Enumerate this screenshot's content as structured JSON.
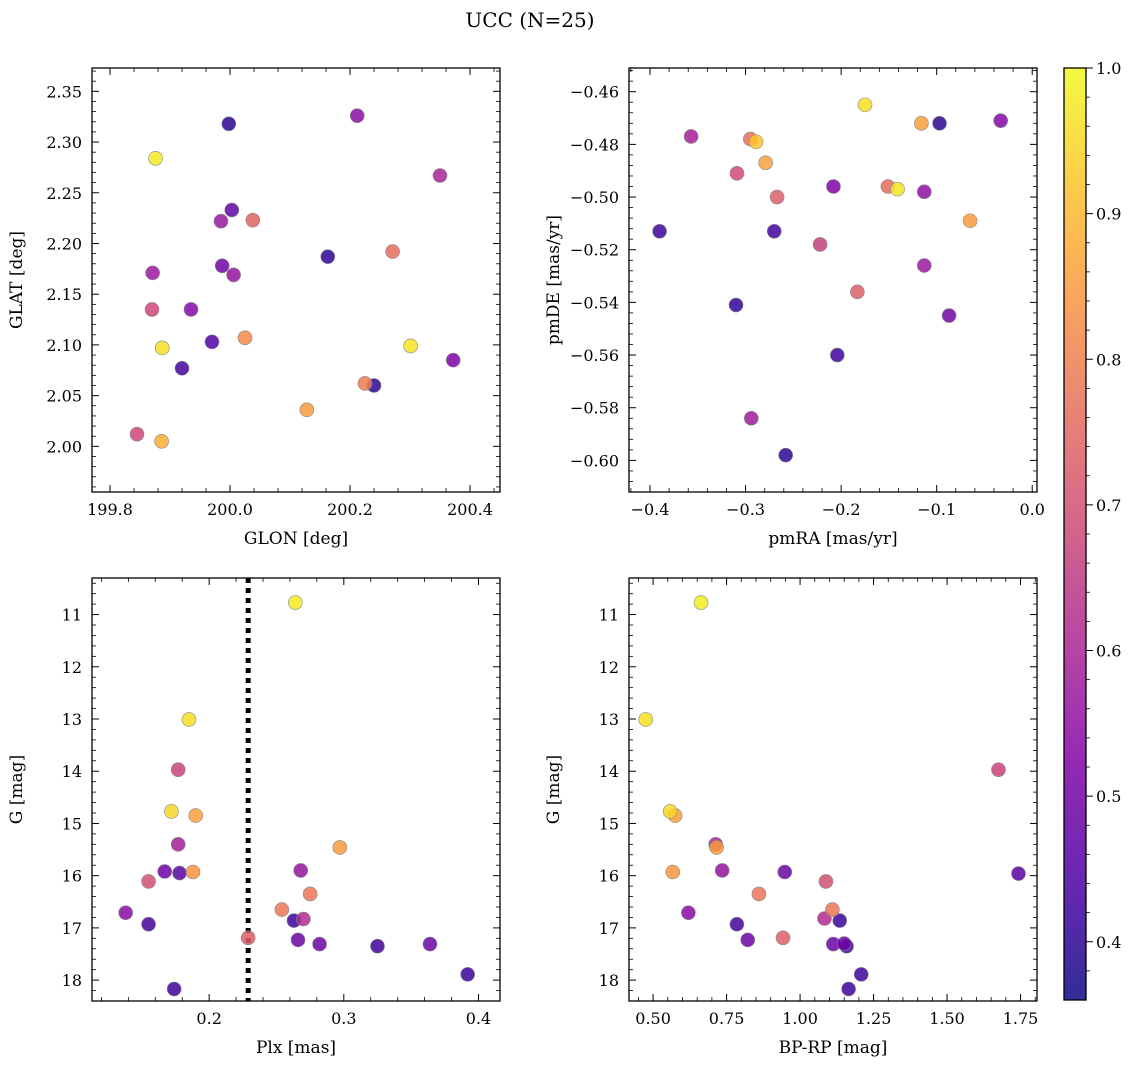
{
  "title": "UCC (N=25)",
  "colorbar": {
    "colormap": "plasma",
    "range": [
      0.36,
      1.0
    ],
    "ticks": [
      "0.4",
      "0.5",
      "0.6",
      "0.7",
      "0.8",
      "0.9",
      "1.0"
    ]
  },
  "chart_data": [
    {
      "type": "scatter",
      "xlabel": "GLON [deg]",
      "ylabel": "GLAT [deg]",
      "xlim": [
        199.77,
        200.45
      ],
      "ylim": [
        1.955,
        2.373
      ],
      "xticks": [
        "199.8",
        "200.0",
        "200.2",
        "200.4"
      ],
      "yticks": [
        "2.00",
        "2.05",
        "2.10",
        "2.15",
        "2.20",
        "2.25",
        "2.30",
        "2.35"
      ],
      "points": [
        {
          "x": 199.998,
          "y": 2.318,
          "c": 0.4
        },
        {
          "x": 200.212,
          "y": 2.326,
          "c": 0.54
        },
        {
          "x": 199.876,
          "y": 2.284,
          "c": 0.98
        },
        {
          "x": 200.35,
          "y": 2.267,
          "c": 0.6
        },
        {
          "x": 200.003,
          "y": 2.233,
          "c": 0.48
        },
        {
          "x": 199.985,
          "y": 2.222,
          "c": 0.57
        },
        {
          "x": 200.038,
          "y": 2.223,
          "c": 0.74
        },
        {
          "x": 200.163,
          "y": 2.187,
          "c": 0.4
        },
        {
          "x": 200.271,
          "y": 2.192,
          "c": 0.76
        },
        {
          "x": 199.871,
          "y": 2.171,
          "c": 0.57
        },
        {
          "x": 199.987,
          "y": 2.178,
          "c": 0.5
        },
        {
          "x": 200.006,
          "y": 2.169,
          "c": 0.56
        },
        {
          "x": 199.87,
          "y": 2.135,
          "c": 0.68
        },
        {
          "x": 199.935,
          "y": 2.135,
          "c": 0.53
        },
        {
          "x": 199.887,
          "y": 2.097,
          "c": 0.96
        },
        {
          "x": 199.97,
          "y": 2.103,
          "c": 0.45
        },
        {
          "x": 200.025,
          "y": 2.107,
          "c": 0.82
        },
        {
          "x": 200.301,
          "y": 2.099,
          "c": 0.97
        },
        {
          "x": 200.372,
          "y": 2.085,
          "c": 0.52
        },
        {
          "x": 199.92,
          "y": 2.077,
          "c": 0.43
        },
        {
          "x": 200.225,
          "y": 2.062,
          "c": 0.79
        },
        {
          "x": 200.24,
          "y": 2.06,
          "c": 0.4
        },
        {
          "x": 200.128,
          "y": 2.036,
          "c": 0.85
        },
        {
          "x": 199.845,
          "y": 2.012,
          "c": 0.68
        },
        {
          "x": 199.886,
          "y": 2.005,
          "c": 0.88
        }
      ]
    },
    {
      "type": "scatter",
      "xlabel": "pmRA [mas/yr]",
      "ylabel": "pmDE [mas/yr]",
      "xlim": [
        -0.422,
        0.005
      ],
      "ylim": [
        -0.612,
        -0.451
      ],
      "xticks": [
        "−0.4",
        "−0.3",
        "−0.2",
        "−0.1",
        "0.0"
      ],
      "yticks": [
        "−0.46",
        "−0.48",
        "−0.50",
        "−0.52",
        "−0.54",
        "−0.56",
        "−0.58",
        "−0.60"
      ],
      "points": [
        {
          "x": -0.175,
          "y": -0.465,
          "c": 0.96
        },
        {
          "x": -0.033,
          "y": -0.471,
          "c": 0.53
        },
        {
          "x": -0.116,
          "y": -0.472,
          "c": 0.86
        },
        {
          "x": -0.097,
          "y": -0.472,
          "c": 0.4
        },
        {
          "x": -0.357,
          "y": -0.477,
          "c": 0.59
        },
        {
          "x": -0.295,
          "y": -0.478,
          "c": 0.77
        },
        {
          "x": -0.289,
          "y": -0.479,
          "c": 0.92
        },
        {
          "x": -0.279,
          "y": -0.487,
          "c": 0.86
        },
        {
          "x": -0.309,
          "y": -0.491,
          "c": 0.69
        },
        {
          "x": -0.208,
          "y": -0.496,
          "c": 0.52
        },
        {
          "x": -0.151,
          "y": -0.496,
          "c": 0.76
        },
        {
          "x": -0.141,
          "y": -0.497,
          "c": 0.97
        },
        {
          "x": -0.113,
          "y": -0.498,
          "c": 0.55
        },
        {
          "x": -0.267,
          "y": -0.5,
          "c": 0.73
        },
        {
          "x": -0.065,
          "y": -0.509,
          "c": 0.85
        },
        {
          "x": -0.39,
          "y": -0.513,
          "c": 0.42
        },
        {
          "x": -0.27,
          "y": -0.513,
          "c": 0.43
        },
        {
          "x": -0.222,
          "y": -0.518,
          "c": 0.66
        },
        {
          "x": -0.113,
          "y": -0.526,
          "c": 0.57
        },
        {
          "x": -0.183,
          "y": -0.536,
          "c": 0.73
        },
        {
          "x": -0.31,
          "y": -0.541,
          "c": 0.41
        },
        {
          "x": -0.087,
          "y": -0.545,
          "c": 0.5
        },
        {
          "x": -0.204,
          "y": -0.56,
          "c": 0.42
        },
        {
          "x": -0.294,
          "y": -0.584,
          "c": 0.58
        },
        {
          "x": -0.258,
          "y": -0.598,
          "c": 0.4
        }
      ]
    },
    {
      "type": "scatter",
      "xlabel": "Plx [mas]",
      "ylabel": "G [mag]",
      "xlim": [
        0.113,
        0.416
      ],
      "ylim": [
        18.4,
        10.3
      ],
      "xticks": [
        "0.2",
        "0.3",
        "0.4"
      ],
      "yticks": [
        "11",
        "12",
        "13",
        "14",
        "15",
        "16",
        "17",
        "18"
      ],
      "vline": {
        "x": 0.229,
        "style": "dotted"
      },
      "points": [
        {
          "x": 0.264,
          "y": 10.77,
          "c": 0.98
        },
        {
          "x": 0.185,
          "y": 13.01,
          "c": 0.96
        },
        {
          "x": 0.177,
          "y": 13.97,
          "c": 0.67
        },
        {
          "x": 0.172,
          "y": 14.77,
          "c": 0.95
        },
        {
          "x": 0.19,
          "y": 14.85,
          "c": 0.86
        },
        {
          "x": 0.177,
          "y": 15.4,
          "c": 0.59
        },
        {
          "x": 0.297,
          "y": 15.46,
          "c": 0.85
        },
        {
          "x": 0.268,
          "y": 15.9,
          "c": 0.56
        },
        {
          "x": 0.167,
          "y": 15.92,
          "c": 0.49
        },
        {
          "x": 0.178,
          "y": 15.95,
          "c": 0.46
        },
        {
          "x": 0.188,
          "y": 15.93,
          "c": 0.84
        },
        {
          "x": 0.155,
          "y": 16.11,
          "c": 0.7
        },
        {
          "x": 0.275,
          "y": 16.35,
          "c": 0.78
        },
        {
          "x": 0.254,
          "y": 16.65,
          "c": 0.78
        },
        {
          "x": 0.138,
          "y": 16.71,
          "c": 0.54
        },
        {
          "x": 0.263,
          "y": 16.86,
          "c": 0.42
        },
        {
          "x": 0.27,
          "y": 16.83,
          "c": 0.62
        },
        {
          "x": 0.155,
          "y": 16.93,
          "c": 0.43
        },
        {
          "x": 0.229,
          "y": 17.19,
          "c": 0.73
        },
        {
          "x": 0.266,
          "y": 17.23,
          "c": 0.49
        },
        {
          "x": 0.282,
          "y": 17.31,
          "c": 0.49
        },
        {
          "x": 0.364,
          "y": 17.31,
          "c": 0.49
        },
        {
          "x": 0.325,
          "y": 17.35,
          "c": 0.42
        },
        {
          "x": 0.392,
          "y": 17.89,
          "c": 0.42
        },
        {
          "x": 0.174,
          "y": 18.17,
          "c": 0.42
        }
      ]
    },
    {
      "type": "scatter",
      "xlabel": "BP-RP [mag]",
      "ylabel": "G [mag]",
      "xlim": [
        0.418,
        1.806
      ],
      "ylim": [
        18.4,
        10.3
      ],
      "xticks": [
        "0.50",
        "0.75",
        "1.00",
        "1.25",
        "1.50",
        "1.75"
      ],
      "yticks": [
        "11",
        "12",
        "13",
        "14",
        "15",
        "16",
        "17",
        "18"
      ],
      "points": [
        {
          "x": 0.663,
          "y": 10.77,
          "c": 0.98
        },
        {
          "x": 0.475,
          "y": 13.01,
          "c": 0.96
        },
        {
          "x": 1.675,
          "y": 13.97,
          "c": 0.67
        },
        {
          "x": 0.558,
          "y": 14.77,
          "c": 0.95
        },
        {
          "x": 0.575,
          "y": 14.85,
          "c": 0.86
        },
        {
          "x": 0.713,
          "y": 15.4,
          "c": 0.59
        },
        {
          "x": 0.716,
          "y": 15.46,
          "c": 0.85
        },
        {
          "x": 0.735,
          "y": 15.9,
          "c": 0.56
        },
        {
          "x": 0.948,
          "y": 15.93,
          "c": 0.49
        },
        {
          "x": 1.743,
          "y": 15.96,
          "c": 0.46
        },
        {
          "x": 0.567,
          "y": 15.93,
          "c": 0.84
        },
        {
          "x": 1.088,
          "y": 16.11,
          "c": 0.7
        },
        {
          "x": 0.86,
          "y": 16.35,
          "c": 0.78
        },
        {
          "x": 1.11,
          "y": 16.65,
          "c": 0.78
        },
        {
          "x": 0.62,
          "y": 16.71,
          "c": 0.54
        },
        {
          "x": 1.135,
          "y": 16.86,
          "c": 0.42
        },
        {
          "x": 1.083,
          "y": 16.82,
          "c": 0.62
        },
        {
          "x": 0.785,
          "y": 16.93,
          "c": 0.43
        },
        {
          "x": 0.942,
          "y": 17.19,
          "c": 0.73
        },
        {
          "x": 0.822,
          "y": 17.23,
          "c": 0.49
        },
        {
          "x": 1.113,
          "y": 17.31,
          "c": 0.49
        },
        {
          "x": 1.15,
          "y": 17.3,
          "c": 0.49
        },
        {
          "x": 1.158,
          "y": 17.35,
          "c": 0.42
        },
        {
          "x": 1.208,
          "y": 17.89,
          "c": 0.42
        },
        {
          "x": 1.165,
          "y": 18.17,
          "c": 0.42
        }
      ]
    }
  ]
}
